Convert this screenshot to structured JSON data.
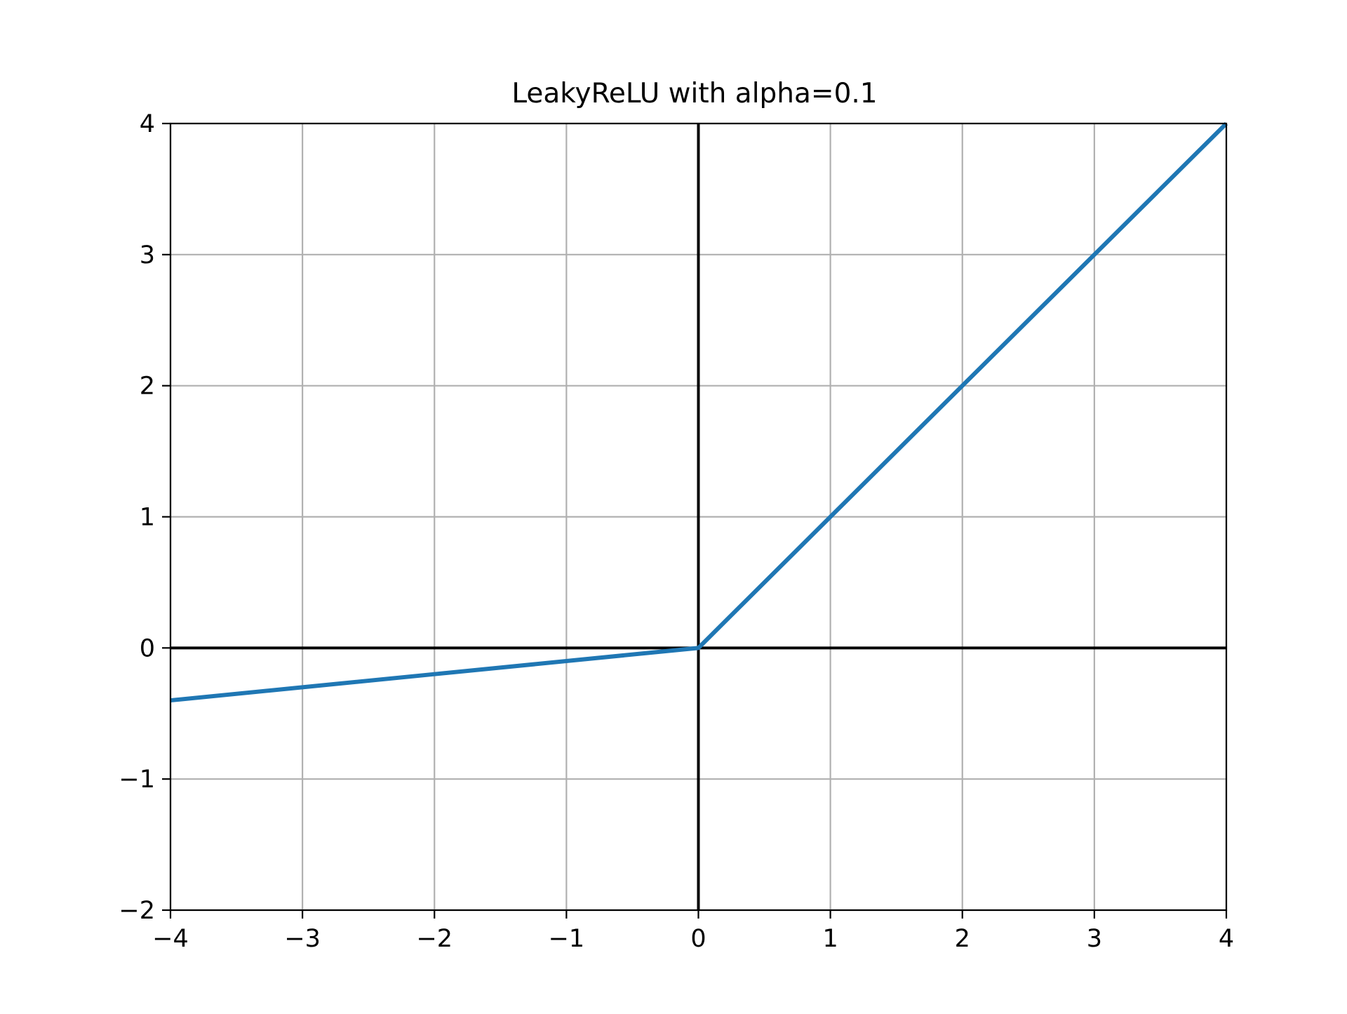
{
  "chart_data": {
    "type": "line",
    "title": "LeakyReLU with alpha=0.1",
    "xlabel": "",
    "ylabel": "",
    "xlim": [
      -4,
      4
    ],
    "ylim": [
      -2,
      4
    ],
    "grid": true,
    "legend": "none",
    "x_ticks": [
      {
        "value": -4,
        "label": "−4"
      },
      {
        "value": -3,
        "label": "−3"
      },
      {
        "value": -2,
        "label": "−2"
      },
      {
        "value": -1,
        "label": "−1"
      },
      {
        "value": 0,
        "label": "0"
      },
      {
        "value": 1,
        "label": "1"
      },
      {
        "value": 2,
        "label": "2"
      },
      {
        "value": 3,
        "label": "3"
      },
      {
        "value": 4,
        "label": "4"
      }
    ],
    "y_ticks": [
      {
        "value": -2,
        "label": "−2"
      },
      {
        "value": -1,
        "label": "−1"
      },
      {
        "value": 0,
        "label": "0"
      },
      {
        "value": 1,
        "label": "1"
      },
      {
        "value": 2,
        "label": "2"
      },
      {
        "value": 3,
        "label": "3"
      },
      {
        "value": 4,
        "label": "4"
      }
    ],
    "reference_lines": [
      {
        "orientation": "horizontal",
        "value": 0,
        "color": "#000000"
      },
      {
        "orientation": "vertical",
        "value": 0,
        "color": "#000000"
      }
    ],
    "series": [
      {
        "color": "#1f77b4",
        "x": [
          -4,
          -3,
          -2,
          -1,
          0,
          1,
          2,
          3,
          4
        ],
        "y": [
          -0.4,
          -0.3,
          -0.2,
          -0.1,
          0,
          1,
          2,
          3,
          4
        ]
      }
    ]
  },
  "colors": {
    "grid": "#b0b0b0",
    "axes": "#000000",
    "background": "#ffffff"
  }
}
